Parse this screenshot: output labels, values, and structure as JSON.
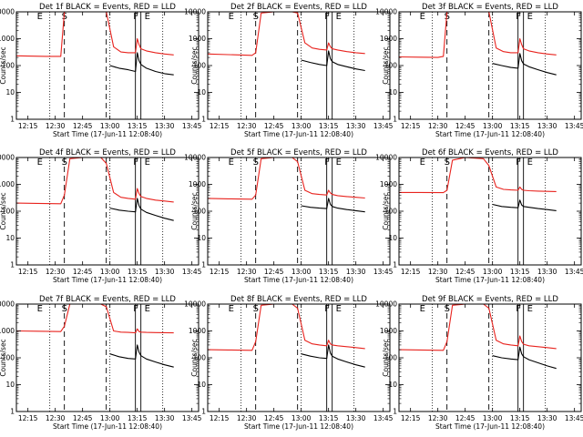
{
  "colors": {
    "events": "#000000",
    "lld": "#e8231e",
    "axes": "#000000",
    "background": "#ffffff"
  },
  "panels_meta": {
    "ylabel": "Counts/sec",
    "xlabel": "Start Time (17-Jun-11 12:08:40)",
    "xticklabels": [
      "12:15",
      "12:30",
      "12:45",
      "13:00",
      "13:15",
      "13:30",
      "13:45"
    ],
    "yticklabels": [
      "1",
      "10",
      "100",
      "1000",
      "10000"
    ],
    "markers": [
      "E",
      "S",
      "F",
      "E"
    ]
  },
  "chart_data": [
    {
      "type": "line",
      "title": "Det 1f BLACK = Events, RED = LLD",
      "xlabel": "Start Time (17-Jun-11 12:08:40)",
      "ylabel": "Counts/sec",
      "y_scale": "log",
      "ylim": [
        1,
        10000
      ],
      "xlim": [
        "12:08:40",
        "13:48:40"
      ],
      "x_tick_labels": [
        "12:15",
        "12:30",
        "12:45",
        "13:00",
        "13:15",
        "13:30",
        "13:45"
      ],
      "dotted_lines": [
        "12:27",
        "13:00",
        "13:29"
      ],
      "dashed_lines": [
        "12:35",
        "12:58"
      ],
      "solid_lines": [
        "13:14",
        "13:17"
      ],
      "series": [
        {
          "name": "RED = LLD",
          "color": "#e8231e",
          "x": [
            "12:08:40",
            "12:15",
            "12:25",
            "12:33",
            "12:35",
            "12:38",
            "12:45",
            "12:55",
            "12:58",
            "13:02",
            "13:06",
            "13:10",
            "13:14",
            "13:15",
            "13:16",
            "13:17",
            "13:20",
            "13:25",
            "13:30",
            "13:35"
          ],
          "y": [
            230,
            225,
            220,
            220,
            10000,
            10000,
            10000,
            10000,
            10000,
            500,
            320,
            300,
            300,
            1000,
            600,
            420,
            350,
            300,
            270,
            250
          ]
        },
        {
          "name": "BLACK = Events",
          "color": "#000000",
          "x": [
            "13:00",
            "13:05",
            "13:10",
            "13:14",
            "13:15",
            "13:16",
            "13:17",
            "13:20",
            "13:25",
            "13:30",
            "13:35"
          ],
          "y": [
            100,
            80,
            70,
            60,
            300,
            150,
            110,
            80,
            60,
            50,
            45
          ]
        }
      ]
    },
    {
      "type": "line",
      "title": "Det 2f BLACK = Events, RED = LLD",
      "xlabel": "Start Time (17-Jun-11 12:08:40)",
      "ylabel": "Counts/sec",
      "y_scale": "log",
      "ylim": [
        1,
        10000
      ],
      "xlim": [
        "12:08:40",
        "13:48:40"
      ],
      "x_tick_labels": [
        "12:15",
        "12:30",
        "12:45",
        "13:00",
        "13:15",
        "13:30",
        "13:45"
      ],
      "dotted_lines": [
        "12:27",
        "13:00",
        "13:29"
      ],
      "dashed_lines": [
        "12:35",
        "12:58"
      ],
      "solid_lines": [
        "13:14",
        "13:17"
      ],
      "series": [
        {
          "name": "RED = LLD",
          "color": "#e8231e",
          "x": [
            "12:08:40",
            "12:20",
            "12:33",
            "12:35",
            "12:38",
            "12:45",
            "12:55",
            "12:58",
            "13:02",
            "13:06",
            "13:10",
            "13:14",
            "13:15",
            "13:16",
            "13:17",
            "13:20",
            "13:25",
            "13:30",
            "13:35"
          ],
          "y": [
            270,
            255,
            240,
            300,
            9000,
            10000,
            10000,
            9000,
            700,
            450,
            400,
            380,
            700,
            500,
            420,
            380,
            330,
            300,
            280
          ]
        },
        {
          "name": "BLACK = Events",
          "color": "#000000",
          "x": [
            "13:00",
            "13:05",
            "13:10",
            "13:14",
            "13:15",
            "13:16",
            "13:17",
            "13:20",
            "13:25",
            "13:30",
            "13:35"
          ],
          "y": [
            160,
            130,
            110,
            100,
            350,
            180,
            140,
            110,
            90,
            75,
            65
          ]
        }
      ]
    },
    {
      "type": "line",
      "title": "Det 3f BLACK = Events, RED = LLD",
      "xlabel": "Start Time (17-Jun-11 12:08:40)",
      "ylabel": "Counts/sec",
      "y_scale": "log",
      "ylim": [
        1,
        10000
      ],
      "xlim": [
        "12:08:40",
        "13:48:40"
      ],
      "x_tick_labels": [
        "12:15",
        "12:30",
        "12:45",
        "13:00",
        "13:15",
        "13:30",
        "13:45"
      ],
      "dotted_lines": [
        "12:27",
        "13:00",
        "13:29"
      ],
      "dashed_lines": [
        "12:35",
        "12:58"
      ],
      "solid_lines": [
        "13:14",
        "13:17"
      ],
      "series": [
        {
          "name": "RED = LLD",
          "color": "#e8231e",
          "x": [
            "12:08:40",
            "12:20",
            "12:30",
            "12:33",
            "12:35",
            "12:38",
            "12:45",
            "12:55",
            "12:58",
            "13:02",
            "13:06",
            "13:10",
            "13:14",
            "13:15",
            "13:16",
            "13:17",
            "13:20",
            "13:25",
            "13:30",
            "13:35"
          ],
          "y": [
            210,
            205,
            200,
            220,
            10000,
            10000,
            10000,
            10000,
            10000,
            450,
            330,
            300,
            300,
            1000,
            600,
            420,
            350,
            300,
            270,
            250
          ]
        },
        {
          "name": "BLACK = Events",
          "color": "#000000",
          "x": [
            "13:00",
            "13:05",
            "13:10",
            "13:14",
            "13:15",
            "13:16",
            "13:17",
            "13:20",
            "13:25",
            "13:30",
            "13:35"
          ],
          "y": [
            120,
            100,
            85,
            80,
            280,
            150,
            115,
            90,
            70,
            55,
            45
          ]
        }
      ]
    },
    {
      "type": "line",
      "title": "Det 4f BLACK = Events, RED = LLD",
      "xlabel": "Start Time (17-Jun-11 12:08:40)",
      "ylabel": "Counts/sec",
      "y_scale": "log",
      "ylim": [
        1,
        10000
      ],
      "xlim": [
        "12:08:40",
        "13:48:40"
      ],
      "x_tick_labels": [
        "12:15",
        "12:30",
        "12:45",
        "13:00",
        "13:15",
        "13:30",
        "13:45"
      ],
      "dotted_lines": [
        "12:27",
        "13:00",
        "13:29"
      ],
      "dashed_lines": [
        "12:35",
        "12:58"
      ],
      "solid_lines": [
        "13:14",
        "13:17"
      ],
      "series": [
        {
          "name": "RED = LLD",
          "color": "#e8231e",
          "x": [
            "12:08:40",
            "12:20",
            "12:33",
            "12:35",
            "12:38",
            "12:45",
            "12:55",
            "12:58",
            "13:02",
            "13:06",
            "13:10",
            "13:14",
            "13:15",
            "13:16",
            "13:17",
            "13:20",
            "13:25",
            "13:30",
            "13:35"
          ],
          "y": [
            200,
            195,
            190,
            400,
            9000,
            10000,
            10000,
            6000,
            500,
            330,
            300,
            280,
            700,
            450,
            350,
            300,
            260,
            240,
            220
          ]
        },
        {
          "name": "BLACK = Events",
          "color": "#000000",
          "x": [
            "13:00",
            "13:05",
            "13:10",
            "13:14",
            "13:15",
            "13:16",
            "13:17",
            "13:20",
            "13:25",
            "13:30",
            "13:35"
          ],
          "y": [
            130,
            110,
            100,
            95,
            300,
            160,
            120,
            90,
            70,
            55,
            45
          ]
        }
      ]
    },
    {
      "type": "line",
      "title": "Det 5f BLACK = Events, RED = LLD",
      "xlabel": "Start Time (17-Jun-11 12:08:40)",
      "ylabel": "Counts/sec",
      "y_scale": "log",
      "ylim": [
        1,
        10000
      ],
      "xlim": [
        "12:08:40",
        "13:48:40"
      ],
      "x_tick_labels": [
        "12:15",
        "12:30",
        "12:45",
        "13:00",
        "13:15",
        "13:30",
        "13:45"
      ],
      "dotted_lines": [
        "12:27",
        "13:00",
        "13:29"
      ],
      "dashed_lines": [
        "12:35",
        "12:58"
      ],
      "solid_lines": [
        "13:14",
        "13:17"
      ],
      "series": [
        {
          "name": "RED = LLD",
          "color": "#e8231e",
          "x": [
            "12:08:40",
            "12:20",
            "12:33",
            "12:35",
            "12:38",
            "12:45",
            "12:55",
            "12:58",
            "13:02",
            "13:06",
            "13:10",
            "13:14",
            "13:15",
            "13:16",
            "13:17",
            "13:20",
            "13:25",
            "13:30",
            "13:35"
          ],
          "y": [
            300,
            290,
            280,
            400,
            9000,
            10000,
            10000,
            7000,
            600,
            450,
            420,
            400,
            600,
            480,
            420,
            380,
            350,
            330,
            310
          ]
        },
        {
          "name": "BLACK = Events",
          "color": "#000000",
          "x": [
            "13:00",
            "13:05",
            "13:10",
            "13:14",
            "13:15",
            "13:16",
            "13:17",
            "13:20",
            "13:25",
            "13:30",
            "13:35"
          ],
          "y": [
            160,
            140,
            130,
            125,
            300,
            180,
            150,
            130,
            115,
            105,
            95
          ]
        }
      ]
    },
    {
      "type": "line",
      "title": "Det 6f BLACK = Events, RED = LLD",
      "xlabel": "Start Time (17-Jun-11 12:08:40)",
      "ylabel": "Counts/sec",
      "y_scale": "log",
      "ylim": [
        1,
        10000
      ],
      "xlim": [
        "12:08:40",
        "13:48:40"
      ],
      "x_tick_labels": [
        "12:15",
        "12:30",
        "12:45",
        "13:00",
        "13:15",
        "13:30",
        "13:45"
      ],
      "dotted_lines": [
        "12:27",
        "13:00",
        "13:29"
      ],
      "dashed_lines": [
        "12:35",
        "12:58"
      ],
      "solid_lines": [
        "13:14",
        "13:17"
      ],
      "series": [
        {
          "name": "RED = LLD",
          "color": "#e8231e",
          "x": [
            "12:08:40",
            "12:20",
            "12:33",
            "12:35",
            "12:38",
            "12:45",
            "12:55",
            "12:58",
            "13:02",
            "13:06",
            "13:10",
            "13:14",
            "13:15",
            "13:16",
            "13:17",
            "13:20",
            "13:25",
            "13:30",
            "13:35"
          ],
          "y": [
            500,
            500,
            490,
            600,
            8000,
            10000,
            9000,
            5000,
            800,
            650,
            620,
            600,
            800,
            650,
            600,
            580,
            560,
            550,
            540
          ]
        },
        {
          "name": "BLACK = Events",
          "color": "#000000",
          "x": [
            "13:00",
            "13:05",
            "13:10",
            "13:14",
            "13:15",
            "13:16",
            "13:17",
            "13:20",
            "13:25",
            "13:30",
            "13:35"
          ],
          "y": [
            180,
            150,
            140,
            135,
            260,
            170,
            150,
            140,
            125,
            115,
            105
          ]
        }
      ]
    },
    {
      "type": "line",
      "title": "Det 7f BLACK = Events, RED = LLD",
      "xlabel": "Start Time (17-Jun-11 12:08:40)",
      "ylabel": "Counts/sec",
      "y_scale": "log",
      "ylim": [
        1,
        10000
      ],
      "xlim": [
        "12:08:40",
        "13:48:40"
      ],
      "x_tick_labels": [
        "12:15",
        "12:30",
        "12:45",
        "13:00",
        "13:15",
        "13:30",
        "13:45"
      ],
      "dotted_lines": [
        "12:27",
        "13:00",
        "13:29"
      ],
      "dashed_lines": [
        "12:35",
        "12:58"
      ],
      "solid_lines": [
        "13:14",
        "13:17"
      ],
      "series": [
        {
          "name": "RED = LLD",
          "color": "#e8231e",
          "x": [
            "12:08:40",
            "12:20",
            "12:33",
            "12:35",
            "12:38",
            "12:45",
            "12:55",
            "12:58",
            "13:02",
            "13:06",
            "13:10",
            "13:14",
            "13:15",
            "13:16",
            "13:17",
            "13:20",
            "13:25",
            "13:30",
            "13:35"
          ],
          "y": [
            1000,
            980,
            950,
            1500,
            10000,
            10000,
            10000,
            8000,
            1000,
            900,
            880,
            850,
            1200,
            950,
            900,
            880,
            870,
            860,
            850
          ]
        },
        {
          "name": "BLACK = Events",
          "color": "#000000",
          "x": [
            "13:00",
            "13:05",
            "13:10",
            "13:14",
            "13:15",
            "13:16",
            "13:17",
            "13:20",
            "13:25",
            "13:30",
            "13:35"
          ],
          "y": [
            140,
            110,
            95,
            90,
            300,
            160,
            120,
            90,
            70,
            55,
            45
          ]
        }
      ]
    },
    {
      "type": "line",
      "title": "Det 8f BLACK = Events, RED = LLD",
      "xlabel": "Start Time (17-Jun-11 12:08:40)",
      "ylabel": "Counts/sec",
      "y_scale": "log",
      "ylim": [
        1,
        10000
      ],
      "xlim": [
        "12:08:40",
        "13:48:40"
      ],
      "x_tick_labels": [
        "12:15",
        "12:30",
        "12:45",
        "13:00",
        "13:15",
        "13:30",
        "13:45"
      ],
      "dotted_lines": [
        "12:27",
        "13:00",
        "13:29"
      ],
      "dashed_lines": [
        "12:35",
        "12:58"
      ],
      "solid_lines": [
        "13:14",
        "13:17"
      ],
      "series": [
        {
          "name": "RED = LLD",
          "color": "#e8231e",
          "x": [
            "12:08:40",
            "12:20",
            "12:33",
            "12:35",
            "12:38",
            "12:45",
            "12:55",
            "12:58",
            "13:02",
            "13:06",
            "13:10",
            "13:14",
            "13:15",
            "13:16",
            "13:17",
            "13:20",
            "13:25",
            "13:30",
            "13:35"
          ],
          "y": [
            200,
            195,
            190,
            400,
            9000,
            10000,
            10000,
            7000,
            450,
            330,
            300,
            280,
            450,
            330,
            300,
            280,
            260,
            240,
            220
          ]
        },
        {
          "name": "BLACK = Events",
          "color": "#000000",
          "x": [
            "13:00",
            "13:05",
            "13:10",
            "13:14",
            "13:15",
            "13:16",
            "13:17",
            "13:20",
            "13:25",
            "13:30",
            "13:35"
          ],
          "y": [
            140,
            115,
            100,
            95,
            300,
            150,
            115,
            90,
            70,
            55,
            45
          ]
        }
      ]
    },
    {
      "type": "line",
      "title": "Det 9f BLACK = Events, RED = LLD",
      "xlabel": "Start Time (17-Jun-11 12:08:40)",
      "ylabel": "Counts/sec",
      "y_scale": "log",
      "ylim": [
        1,
        10000
      ],
      "xlim": [
        "12:08:40",
        "13:48:40"
      ],
      "x_tick_labels": [
        "12:15",
        "12:30",
        "12:45",
        "13:00",
        "13:15",
        "13:30",
        "13:45"
      ],
      "dotted_lines": [
        "12:27",
        "13:00",
        "13:29"
      ],
      "dashed_lines": [
        "12:35",
        "12:58"
      ],
      "solid_lines": [
        "13:14",
        "13:17"
      ],
      "series": [
        {
          "name": "RED = LLD",
          "color": "#e8231e",
          "x": [
            "12:08:40",
            "12:20",
            "12:33",
            "12:35",
            "12:38",
            "12:45",
            "12:55",
            "12:58",
            "13:02",
            "13:06",
            "13:10",
            "13:14",
            "13:15",
            "13:16",
            "13:17",
            "13:20",
            "13:25",
            "13:30",
            "13:35"
          ],
          "y": [
            200,
            195,
            190,
            400,
            9000,
            10000,
            10000,
            7000,
            450,
            330,
            300,
            280,
            650,
            400,
            320,
            280,
            260,
            240,
            220
          ]
        },
        {
          "name": "BLACK = Events",
          "color": "#000000",
          "x": [
            "13:00",
            "13:05",
            "13:10",
            "13:14",
            "13:15",
            "13:16",
            "13:17",
            "13:20",
            "13:25",
            "13:30",
            "13:35"
          ],
          "y": [
            120,
            100,
            90,
            85,
            250,
            140,
            110,
            85,
            65,
            50,
            40
          ]
        }
      ]
    }
  ]
}
